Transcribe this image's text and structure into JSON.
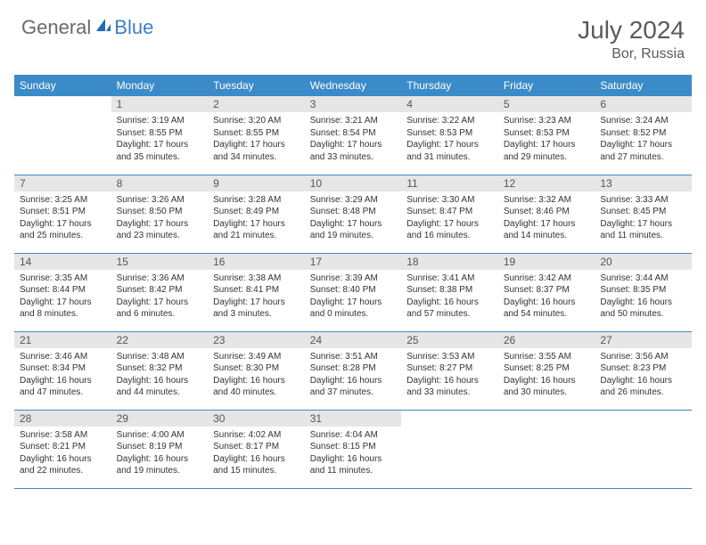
{
  "brand": {
    "part1": "General",
    "part2": "Blue"
  },
  "title": "July 2024",
  "location": "Bor, Russia",
  "colors": {
    "header_bar": "#3b8bc9",
    "daynum_bg": "#e6e6e6",
    "brand_gray": "#6a6a6a",
    "brand_blue": "#3a7fc4",
    "text": "#333333",
    "title_gray": "#5a5a5a"
  },
  "fonts": {
    "title_size": 28,
    "location_size": 16,
    "dow_size": 12,
    "daynum_size": 12,
    "body_size": 10
  },
  "days_of_week": [
    "Sunday",
    "Monday",
    "Tuesday",
    "Wednesday",
    "Thursday",
    "Friday",
    "Saturday"
  ],
  "weeks": [
    [
      {
        "n": "",
        "sr": "",
        "ss": "",
        "dl": ""
      },
      {
        "n": "1",
        "sr": "Sunrise: 3:19 AM",
        "ss": "Sunset: 8:55 PM",
        "dl": "Daylight: 17 hours and 35 minutes."
      },
      {
        "n": "2",
        "sr": "Sunrise: 3:20 AM",
        "ss": "Sunset: 8:55 PM",
        "dl": "Daylight: 17 hours and 34 minutes."
      },
      {
        "n": "3",
        "sr": "Sunrise: 3:21 AM",
        "ss": "Sunset: 8:54 PM",
        "dl": "Daylight: 17 hours and 33 minutes."
      },
      {
        "n": "4",
        "sr": "Sunrise: 3:22 AM",
        "ss": "Sunset: 8:53 PM",
        "dl": "Daylight: 17 hours and 31 minutes."
      },
      {
        "n": "5",
        "sr": "Sunrise: 3:23 AM",
        "ss": "Sunset: 8:53 PM",
        "dl": "Daylight: 17 hours and 29 minutes."
      },
      {
        "n": "6",
        "sr": "Sunrise: 3:24 AM",
        "ss": "Sunset: 8:52 PM",
        "dl": "Daylight: 17 hours and 27 minutes."
      }
    ],
    [
      {
        "n": "7",
        "sr": "Sunrise: 3:25 AM",
        "ss": "Sunset: 8:51 PM",
        "dl": "Daylight: 17 hours and 25 minutes."
      },
      {
        "n": "8",
        "sr": "Sunrise: 3:26 AM",
        "ss": "Sunset: 8:50 PM",
        "dl": "Daylight: 17 hours and 23 minutes."
      },
      {
        "n": "9",
        "sr": "Sunrise: 3:28 AM",
        "ss": "Sunset: 8:49 PM",
        "dl": "Daylight: 17 hours and 21 minutes."
      },
      {
        "n": "10",
        "sr": "Sunrise: 3:29 AM",
        "ss": "Sunset: 8:48 PM",
        "dl": "Daylight: 17 hours and 19 minutes."
      },
      {
        "n": "11",
        "sr": "Sunrise: 3:30 AM",
        "ss": "Sunset: 8:47 PM",
        "dl": "Daylight: 17 hours and 16 minutes."
      },
      {
        "n": "12",
        "sr": "Sunrise: 3:32 AM",
        "ss": "Sunset: 8:46 PM",
        "dl": "Daylight: 17 hours and 14 minutes."
      },
      {
        "n": "13",
        "sr": "Sunrise: 3:33 AM",
        "ss": "Sunset: 8:45 PM",
        "dl": "Daylight: 17 hours and 11 minutes."
      }
    ],
    [
      {
        "n": "14",
        "sr": "Sunrise: 3:35 AM",
        "ss": "Sunset: 8:44 PM",
        "dl": "Daylight: 17 hours and 8 minutes."
      },
      {
        "n": "15",
        "sr": "Sunrise: 3:36 AM",
        "ss": "Sunset: 8:42 PM",
        "dl": "Daylight: 17 hours and 6 minutes."
      },
      {
        "n": "16",
        "sr": "Sunrise: 3:38 AM",
        "ss": "Sunset: 8:41 PM",
        "dl": "Daylight: 17 hours and 3 minutes."
      },
      {
        "n": "17",
        "sr": "Sunrise: 3:39 AM",
        "ss": "Sunset: 8:40 PM",
        "dl": "Daylight: 17 hours and 0 minutes."
      },
      {
        "n": "18",
        "sr": "Sunrise: 3:41 AM",
        "ss": "Sunset: 8:38 PM",
        "dl": "Daylight: 16 hours and 57 minutes."
      },
      {
        "n": "19",
        "sr": "Sunrise: 3:42 AM",
        "ss": "Sunset: 8:37 PM",
        "dl": "Daylight: 16 hours and 54 minutes."
      },
      {
        "n": "20",
        "sr": "Sunrise: 3:44 AM",
        "ss": "Sunset: 8:35 PM",
        "dl": "Daylight: 16 hours and 50 minutes."
      }
    ],
    [
      {
        "n": "21",
        "sr": "Sunrise: 3:46 AM",
        "ss": "Sunset: 8:34 PM",
        "dl": "Daylight: 16 hours and 47 minutes."
      },
      {
        "n": "22",
        "sr": "Sunrise: 3:48 AM",
        "ss": "Sunset: 8:32 PM",
        "dl": "Daylight: 16 hours and 44 minutes."
      },
      {
        "n": "23",
        "sr": "Sunrise: 3:49 AM",
        "ss": "Sunset: 8:30 PM",
        "dl": "Daylight: 16 hours and 40 minutes."
      },
      {
        "n": "24",
        "sr": "Sunrise: 3:51 AM",
        "ss": "Sunset: 8:28 PM",
        "dl": "Daylight: 16 hours and 37 minutes."
      },
      {
        "n": "25",
        "sr": "Sunrise: 3:53 AM",
        "ss": "Sunset: 8:27 PM",
        "dl": "Daylight: 16 hours and 33 minutes."
      },
      {
        "n": "26",
        "sr": "Sunrise: 3:55 AM",
        "ss": "Sunset: 8:25 PM",
        "dl": "Daylight: 16 hours and 30 minutes."
      },
      {
        "n": "27",
        "sr": "Sunrise: 3:56 AM",
        "ss": "Sunset: 8:23 PM",
        "dl": "Daylight: 16 hours and 26 minutes."
      }
    ],
    [
      {
        "n": "28",
        "sr": "Sunrise: 3:58 AM",
        "ss": "Sunset: 8:21 PM",
        "dl": "Daylight: 16 hours and 22 minutes."
      },
      {
        "n": "29",
        "sr": "Sunrise: 4:00 AM",
        "ss": "Sunset: 8:19 PM",
        "dl": "Daylight: 16 hours and 19 minutes."
      },
      {
        "n": "30",
        "sr": "Sunrise: 4:02 AM",
        "ss": "Sunset: 8:17 PM",
        "dl": "Daylight: 16 hours and 15 minutes."
      },
      {
        "n": "31",
        "sr": "Sunrise: 4:04 AM",
        "ss": "Sunset: 8:15 PM",
        "dl": "Daylight: 16 hours and 11 minutes."
      },
      {
        "n": "",
        "sr": "",
        "ss": "",
        "dl": ""
      },
      {
        "n": "",
        "sr": "",
        "ss": "",
        "dl": ""
      },
      {
        "n": "",
        "sr": "",
        "ss": "",
        "dl": ""
      }
    ]
  ]
}
